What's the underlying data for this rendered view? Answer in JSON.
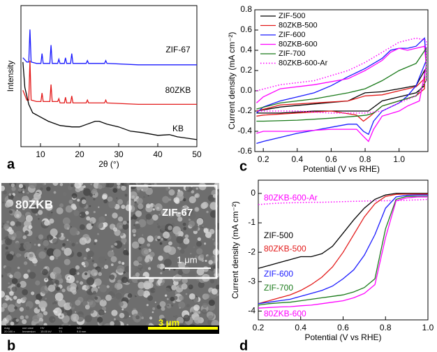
{
  "chart_data": [
    {
      "type": "line",
      "panel_label": "a",
      "xlabel": "2θ (°)",
      "ylabel": "Intensity",
      "xlim": [
        5,
        50
      ],
      "ylim": [
        0,
        1
      ],
      "xticks": [
        10,
        20,
        30,
        40,
        50
      ],
      "series_labels": "inline",
      "series": [
        {
          "name": "ZIF-67",
          "color": "#1a1aff",
          "x": [
            5.5,
            6.5,
            7.0,
            7.3,
            7.6,
            9,
            10.1,
            10.4,
            10.7,
            12.4,
            12.7,
            13,
            14.4,
            14.7,
            15,
            16.1,
            16.4,
            16.7,
            17.7,
            18,
            18.3,
            21.7,
            22,
            22.3,
            26.4,
            26.7,
            27,
            35,
            50
          ],
          "values": [
            0.63,
            0.6,
            0.6,
            0.83,
            0.6,
            0.59,
            0.59,
            0.66,
            0.59,
            0.59,
            0.72,
            0.59,
            0.59,
            0.62,
            0.59,
            0.59,
            0.63,
            0.59,
            0.59,
            0.66,
            0.59,
            0.59,
            0.61,
            0.59,
            0.59,
            0.61,
            0.59,
            0.58,
            0.58
          ]
        },
        {
          "name": "80ZKB",
          "color": "#e31a1a",
          "x": [
            5.5,
            6.5,
            7.0,
            7.3,
            7.6,
            9,
            10.1,
            10.4,
            10.7,
            12.4,
            12.7,
            13,
            14.4,
            14.7,
            15,
            16.1,
            16.4,
            16.7,
            17.7,
            18,
            18.3,
            21.7,
            22,
            22.3,
            26.4,
            26.7,
            27,
            35,
            50
          ],
          "values": [
            0.4,
            0.33,
            0.33,
            0.61,
            0.33,
            0.32,
            0.32,
            0.38,
            0.32,
            0.32,
            0.44,
            0.32,
            0.32,
            0.34,
            0.31,
            0.31,
            0.35,
            0.31,
            0.31,
            0.36,
            0.31,
            0.31,
            0.33,
            0.31,
            0.31,
            0.33,
            0.31,
            0.3,
            0.3
          ]
        },
        {
          "name": "KB",
          "color": "#000000",
          "x": [
            5.5,
            6,
            7,
            8,
            10,
            12,
            15,
            18,
            20,
            22,
            24,
            25,
            27,
            30,
            33,
            36,
            40,
            43,
            45,
            50
          ],
          "values": [
            0.6,
            0.42,
            0.3,
            0.24,
            0.21,
            0.18,
            0.15,
            0.14,
            0.14,
            0.16,
            0.18,
            0.18,
            0.16,
            0.14,
            0.11,
            0.1,
            0.08,
            0.085,
            0.07,
            0.05
          ]
        }
      ]
    },
    {
      "type": "line",
      "panel_label": "c",
      "xlabel": "Potential (V vs RHE)",
      "ylabel": "Current density (mA cm⁻²)",
      "xlim": [
        0.15,
        1.17
      ],
      "ylim": [
        -0.6,
        0.8
      ],
      "xticks": [
        0.2,
        0.4,
        0.6,
        0.8,
        {
          "value": 1,
          "label": "1.0"
        }
      ],
      "yticks": [
        -0.6,
        -0.4,
        -0.2,
        {
          "value": 0,
          "label": "0.0"
        },
        0.2,
        0.4,
        0.6,
        0.8
      ],
      "legend": "upper left",
      "series": [
        {
          "name": "ZIF-500",
          "color": "#000000",
          "x": [
            0.16,
            0.3,
            0.5,
            0.7,
            0.76,
            0.8,
            0.9,
            1.0,
            1.1,
            1.15,
            1.15,
            1.1,
            1.0,
            0.9,
            0.82,
            0.78,
            0.7,
            0.5,
            0.3,
            0.16
          ],
          "values": [
            -0.2,
            -0.16,
            -0.13,
            -0.1,
            -0.05,
            -0.02,
            -0.01,
            0.02,
            0.05,
            0.2,
            0.05,
            -0.02,
            -0.06,
            -0.1,
            -0.2,
            -0.2,
            -0.2,
            -0.2,
            -0.22,
            -0.22
          ]
        },
        {
          "name": "80ZKB-500",
          "color": "#e31a1a",
          "x": [
            0.16,
            0.3,
            0.5,
            0.7,
            0.8,
            0.9,
            1.0,
            1.1,
            1.15,
            1.15,
            1.1,
            1.0,
            0.9,
            0.83,
            0.79,
            0.75,
            0.6,
            0.4,
            0.2,
            0.16
          ],
          "values": [
            -0.2,
            -0.14,
            -0.12,
            -0.1,
            -0.05,
            -0.04,
            0,
            0.04,
            0.12,
            0.02,
            -0.05,
            -0.1,
            -0.15,
            -0.25,
            -0.3,
            -0.24,
            -0.2,
            -0.22,
            -0.24,
            -0.25
          ]
        },
        {
          "name": "ZIF-600",
          "color": "#1a1aff",
          "x": [
            0.16,
            0.2,
            0.3,
            0.4,
            0.5,
            0.6,
            0.7,
            0.8,
            0.9,
            0.95,
            1.0,
            1.05,
            1.1,
            1.15,
            1.16,
            1.1,
            1.05,
            1.0,
            0.95,
            0.9,
            0.85,
            0.82,
            0.79,
            0.75,
            0.7,
            0.6,
            0.5,
            0.4,
            0.3,
            0.2,
            0.16
          ],
          "values": [
            -0.22,
            -0.16,
            -0.1,
            -0.06,
            -0.02,
            0.05,
            0.14,
            0.22,
            0.32,
            0.4,
            0.42,
            0.42,
            0.44,
            0.52,
            0.3,
            0.05,
            -0.05,
            -0.12,
            -0.16,
            -0.2,
            -0.3,
            -0.43,
            -0.4,
            -0.33,
            -0.33,
            -0.36,
            -0.39,
            -0.42,
            -0.46,
            -0.5,
            -0.52
          ]
        },
        {
          "name": "80ZKB-600",
          "color": "#ff00ff",
          "x": [
            0.16,
            0.2,
            0.3,
            0.5,
            0.7,
            0.8,
            0.9,
            0.95,
            1.0,
            1.05,
            1.1,
            1.15,
            1.16,
            1.12,
            1.05,
            1.0,
            0.9,
            0.85,
            0.82,
            0.79,
            0.75,
            0.6,
            0.4,
            0.2,
            0.16
          ],
          "values": [
            -0.12,
            -0.06,
            0.02,
            0.06,
            0.12,
            0.2,
            0.3,
            0.38,
            0.42,
            0.4,
            0.42,
            0.44,
            0.25,
            -0.1,
            -0.15,
            -0.2,
            -0.25,
            -0.38,
            -0.5,
            -0.45,
            -0.38,
            -0.38,
            -0.4,
            -0.4,
            -0.42
          ]
        },
        {
          "name": "ZIF-700",
          "color": "#1a7a1a",
          "x": [
            0.16,
            0.3,
            0.5,
            0.7,
            0.8,
            0.9,
            1.0,
            1.1,
            1.16,
            1.16,
            1.1,
            1.0,
            0.9,
            0.85,
            0.81,
            0.75,
            0.6,
            0.4,
            0.2,
            0.16
          ],
          "values": [
            -0.18,
            -0.12,
            -0.08,
            -0.02,
            0.02,
            0.1,
            0.2,
            0.27,
            0.42,
            0.1,
            -0.05,
            -0.1,
            -0.15,
            -0.22,
            -0.24,
            -0.25,
            -0.27,
            -0.29,
            -0.3,
            -0.3
          ]
        },
        {
          "name": "80ZKB-600-Ar",
          "color": "#ff00ff",
          "linestyle": "dotted",
          "x": [
            0.16,
            0.3,
            0.5,
            0.7,
            0.8,
            0.9,
            1.0,
            1.1,
            1.16,
            1.16,
            1.1,
            1.0,
            0.9,
            0.8,
            0.6,
            0.4,
            0.2,
            0.16
          ],
          "values": [
            0,
            0.06,
            0.1,
            0.2,
            0.28,
            0.38,
            0.48,
            0.52,
            0.5,
            0.1,
            -0.05,
            -0.12,
            -0.2,
            -0.22,
            -0.22,
            -0.2,
            -0.2,
            -0.2
          ]
        }
      ]
    },
    {
      "type": "line",
      "panel_label": "d",
      "xlabel": "Potential (V vs RHE)",
      "ylabel": "Current density (mA cm⁻²)",
      "xlim": [
        0.2,
        1.0
      ],
      "ylim": [
        -4.3,
        0.45
      ],
      "xticks": [
        0.2,
        0.4,
        0.6,
        0.8,
        {
          "value": 1,
          "label": "1.0"
        }
      ],
      "yticks": [
        -4,
        -3,
        -2,
        -1,
        0
      ],
      "series_labels": "inline",
      "x": [
        0.2,
        0.25,
        0.3,
        0.35,
        0.4,
        0.45,
        0.5,
        0.55,
        0.6,
        0.65,
        0.7,
        0.75,
        0.8,
        0.85,
        0.9,
        0.95,
        1.0
      ],
      "series": [
        {
          "name": "80ZKB-600-Ar",
          "color": "#ff00ff",
          "linestyle": "dotted",
          "values": [
            -0.38,
            -0.35,
            -0.33,
            -0.32,
            -0.31,
            -0.3,
            -0.3,
            -0.29,
            -0.28,
            -0.27,
            -0.26,
            -0.25,
            -0.25,
            -0.24,
            -0.23,
            -0.22,
            -0.2
          ]
        },
        {
          "name": "ZIF-500",
          "color": "#000000",
          "values": [
            -2.55,
            -2.45,
            -2.35,
            -2.25,
            -2.15,
            -2.15,
            -2.05,
            -1.8,
            -1.35,
            -0.9,
            -0.5,
            -0.2,
            -0.05,
            0,
            0,
            0,
            0
          ]
        },
        {
          "name": "80ZKB-500",
          "color": "#e31a1a",
          "values": [
            -3.75,
            -3.65,
            -3.55,
            -3.45,
            -3.3,
            -3.1,
            -2.85,
            -2.5,
            -2,
            -1.4,
            -0.8,
            -0.35,
            -0.1,
            -0.03,
            -0.02,
            -0.02,
            -0.02
          ]
        },
        {
          "name": "ZIF-600",
          "color": "#1a1aff",
          "values": [
            -3.75,
            -3.7,
            -3.65,
            -3.6,
            -3.5,
            -3.4,
            -3.3,
            -3.15,
            -2.9,
            -2.6,
            -2.1,
            -1.4,
            -0.5,
            -0.12,
            -0.06,
            -0.05,
            -0.05
          ]
        },
        {
          "name": "ZIF-700",
          "color": "#1a7a1a",
          "values": [
            -3.8,
            -3.75,
            -3.72,
            -3.7,
            -3.65,
            -3.6,
            -3.55,
            -3.5,
            -3.45,
            -3.35,
            -3.2,
            -2.9,
            -1.2,
            -0.2,
            -0.1,
            -0.1,
            -0.1
          ]
        },
        {
          "name": "80ZKB-600",
          "color": "#ff00ff",
          "values": [
            -3.9,
            -3.88,
            -3.86,
            -3.85,
            -3.82,
            -3.8,
            -3.75,
            -3.7,
            -3.65,
            -3.55,
            -3.4,
            -3.1,
            -1.5,
            -0.25,
            -0.15,
            -0.12,
            -0.12
          ]
        }
      ]
    }
  ],
  "image": {
    "panel_label": "b",
    "sample": "80ZKB",
    "inset_label": "ZIF-67",
    "inset_scale": "1 μm",
    "scale": "3 μm",
    "info": [
      "mag",
      "20 000 x",
      "use case",
      "Immersion",
      "HV",
      "15.00 kV",
      "det",
      "T3",
      "WD",
      "9.8 mm"
    ]
  }
}
